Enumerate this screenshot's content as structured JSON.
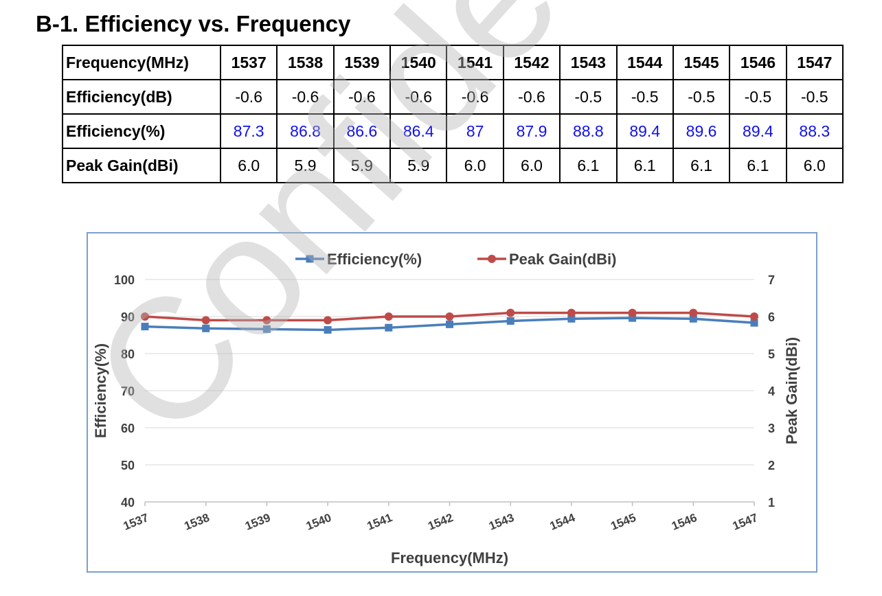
{
  "section_title": "B-1. Efficiency vs. Frequency",
  "table": {
    "rows": [
      {
        "label": "Frequency(MHz)",
        "cells": [
          "1537",
          "1538",
          "1539",
          "1540",
          "1541",
          "1542",
          "1543",
          "1544",
          "1545",
          "1546",
          "1547"
        ]
      },
      {
        "label": "Efficiency(dB)",
        "cells": [
          "-0.6",
          "-0.6",
          "-0.6",
          "-0.6",
          "-0.6",
          "-0.6",
          "-0.5",
          "-0.5",
          "-0.5",
          "-0.5",
          "-0.5"
        ]
      },
      {
        "label": "Efficiency(%)",
        "cells": [
          "87.3",
          "86.8",
          "86.6",
          "86.4",
          "87",
          "87.9",
          "88.8",
          "89.4",
          "89.6",
          "89.4",
          "88.3"
        ]
      },
      {
        "label": "Peak Gain(dBi)",
        "cells": [
          "6.0",
          "5.9",
          "5.9",
          "5.9",
          "6.0",
          "6.0",
          "6.1",
          "6.1",
          "6.1",
          "6.1",
          "6.0"
        ]
      }
    ]
  },
  "watermark": "Confidential",
  "chart_data": {
    "type": "line",
    "categories": [
      "1537",
      "1538",
      "1539",
      "1540",
      "1541",
      "1542",
      "1543",
      "1544",
      "1545",
      "1546",
      "1547"
    ],
    "xlabel": "Frequency(MHz)",
    "ylabel": "Efficiency(%)",
    "y2label": "Peak Gain(dBi)",
    "ylim": [
      40,
      100
    ],
    "yticks": [
      40,
      50,
      60,
      70,
      80,
      90,
      100
    ],
    "y2lim": [
      1,
      7
    ],
    "y2ticks": [
      1,
      2,
      3,
      4,
      5,
      6,
      7
    ],
    "grid": true,
    "legend_position": "top",
    "series": [
      {
        "name": "Efficiency(%)",
        "axis": "left",
        "marker": "square",
        "color": "#4a7ebb",
        "values": [
          87.3,
          86.8,
          86.6,
          86.4,
          87,
          87.9,
          88.8,
          89.4,
          89.6,
          89.4,
          88.3
        ]
      },
      {
        "name": "Peak Gain(dBi)",
        "axis": "right",
        "marker": "circle",
        "color": "#be4b48",
        "values": [
          6.0,
          5.9,
          5.9,
          5.9,
          6.0,
          6.0,
          6.1,
          6.1,
          6.1,
          6.1,
          6.0
        ]
      }
    ]
  }
}
